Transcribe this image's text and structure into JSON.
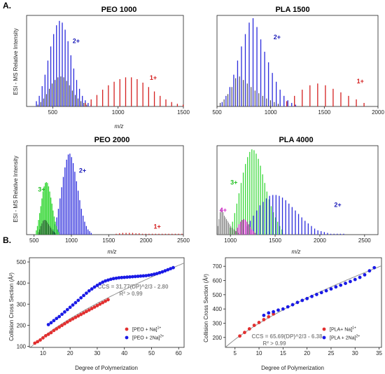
{
  "figure": {
    "section_a": "A.",
    "section_b": "B."
  },
  "chart_data": [
    {
      "id": "peo1000",
      "type": "bar",
      "title": "PEO 1000",
      "xlabel": "m/z",
      "ylabel": "ESI - MS Relative Intensity",
      "xlim": [
        300,
        1500
      ],
      "xticks": [
        500,
        1000,
        1500
      ],
      "annotations": [
        {
          "text": "2+",
          "x": 680,
          "y": 0.72,
          "color": "#1a1ab8"
        },
        {
          "text": "1+",
          "x": 1270,
          "y": 0.3,
          "color": "#d42020"
        }
      ],
      "series": [
        {
          "name": "2+",
          "color": "#2a2adc",
          "start": 375,
          "step": 22,
          "values": [
            0.06,
            0.12,
            0.23,
            0.36,
            0.52,
            0.68,
            0.82,
            0.92,
            0.97,
            0.95,
            0.87,
            0.74,
            0.58,
            0.43,
            0.3,
            0.2,
            0.12,
            0.07,
            0.04,
            0.02
          ]
        },
        {
          "name": "1+",
          "color": "#d42020",
          "start": 750,
          "step": 44,
          "values": [
            0.04,
            0.08,
            0.13,
            0.19,
            0.24,
            0.28,
            0.31,
            0.33,
            0.33,
            0.31,
            0.27,
            0.22,
            0.17,
            0.12,
            0.08,
            0.05,
            0.03,
            0.02
          ]
        },
        {
          "name": "adduct",
          "color": "#1c1c1c",
          "start": 386,
          "step": 22,
          "values": [
            0.02,
            0.05,
            0.09,
            0.14,
            0.2,
            0.26,
            0.3,
            0.33,
            0.34,
            0.33,
            0.29,
            0.24,
            0.18,
            0.13,
            0.09,
            0.06,
            0.04,
            0.02
          ]
        }
      ]
    },
    {
      "id": "pla1500",
      "type": "bar",
      "title": "PLA 1500",
      "xlabel": "m/z",
      "ylabel": "",
      "xlim": [
        500,
        2000
      ],
      "xticks": [
        500,
        1000,
        1500,
        2000
      ],
      "annotations": [
        {
          "text": "2+",
          "x": 1060,
          "y": 0.76,
          "color": "#1a1ab8"
        },
        {
          "text": "1+",
          "x": 1835,
          "y": 0.26,
          "color": "#d42020"
        }
      ],
      "series": [
        {
          "name": "2+",
          "color": "#2a2adc",
          "start": 548,
          "step": 36,
          "values": [
            0.05,
            0.12,
            0.22,
            0.36,
            0.52,
            0.68,
            0.82,
            0.95,
            1.0,
            0.9,
            0.76,
            0.62,
            0.5,
            0.38,
            0.28,
            0.19,
            0.12,
            0.07,
            0.04,
            0.02
          ]
        },
        {
          "name": "1+",
          "color": "#d42020",
          "start": 1150,
          "step": 72,
          "values": [
            0.06,
            0.12,
            0.19,
            0.24,
            0.26,
            0.24,
            0.2,
            0.16,
            0.12,
            0.08,
            0.04
          ]
        },
        {
          "name": "adduct",
          "color": "#1c1c1c",
          "start": 530,
          "step": 36,
          "values": [
            0.04,
            0.08,
            0.14,
            0.22,
            0.32,
            0.34,
            0.3,
            0.26,
            0.22,
            0.18,
            0.15,
            0.12,
            0.09,
            0.07,
            0.05,
            0.03
          ]
        }
      ]
    },
    {
      "id": "peo2000",
      "type": "bar",
      "title": "PEO 2000",
      "xlabel": "m/z",
      "ylabel": "ESI - MS Relative Intensity",
      "xlim": [
        400,
        2500
      ],
      "xticks": [
        500,
        1000,
        1500,
        2000,
        2500
      ],
      "annotations": [
        {
          "text": "3+",
          "x": 600,
          "y": 0.5,
          "color": "#22c022"
        },
        {
          "text": "2+",
          "x": 1150,
          "y": 0.72,
          "color": "#1a1ab8"
        },
        {
          "text": "1+",
          "x": 2150,
          "y": 0.07,
          "color": "#d42020"
        }
      ],
      "series": [
        {
          "name": "3+",
          "color": "#3ad83a",
          "start": 530,
          "step": 15,
          "values": [
            0.05,
            0.1,
            0.17,
            0.25,
            0.33,
            0.42,
            0.5,
            0.56,
            0.6,
            0.61,
            0.6,
            0.56,
            0.5,
            0.43,
            0.36,
            0.28,
            0.21,
            0.15,
            0.1,
            0.06,
            0.03
          ]
        },
        {
          "name": "2+",
          "color": "#2a2adc",
          "start": 760,
          "step": 22,
          "values": [
            0.06,
            0.12,
            0.2,
            0.3,
            0.42,
            0.55,
            0.67,
            0.78,
            0.87,
            0.93,
            0.94,
            0.9,
            0.83,
            0.73,
            0.62,
            0.51,
            0.4,
            0.3,
            0.22,
            0.15,
            0.1,
            0.06,
            0.04,
            0.02
          ]
        },
        {
          "name": "1+",
          "color": "#d42020",
          "start": 1600,
          "step": 44,
          "values": [
            0.01,
            0.015,
            0.02,
            0.02,
            0.02,
            0.02,
            0.015,
            0.015,
            0.01,
            0.01,
            0.01,
            0.01,
            0.01,
            0.01,
            0.01,
            0.01,
            0.01,
            0.01,
            0.01,
            0.01,
            0.01
          ]
        },
        {
          "name": "adduct",
          "color": "#0d4a16",
          "start": 560,
          "step": 15,
          "values": [
            0.03,
            0.06,
            0.1,
            0.13,
            0.16,
            0.17,
            0.17,
            0.16,
            0.14,
            0.12,
            0.1,
            0.08,
            0.06,
            0.04,
            0.03,
            0.02
          ]
        }
      ]
    },
    {
      "id": "pla4000",
      "type": "bar",
      "title": "PLA 4000",
      "xlabel": "m/z",
      "ylabel": "",
      "xlim": [
        850,
        2650
      ],
      "xticks": [
        1000,
        1500,
        2000,
        2500
      ],
      "annotations": [
        {
          "text": "4+",
          "x": 920,
          "y": 0.26,
          "color": "#d020c8"
        },
        {
          "text": "3+",
          "x": 1040,
          "y": 0.58,
          "color": "#22c022"
        },
        {
          "text": "2+",
          "x": 2200,
          "y": 0.32,
          "color": "#1a1ab8"
        }
      ],
      "series": [
        {
          "name": "3+",
          "color": "#3ad83a",
          "start": 1000,
          "step": 24,
          "values": [
            0.08,
            0.15,
            0.25,
            0.36,
            0.48,
            0.6,
            0.72,
            0.82,
            0.9,
            0.96,
            0.99,
            0.98,
            0.94,
            0.88,
            0.8,
            0.7,
            0.6,
            0.5,
            0.41,
            0.33,
            0.26,
            0.2,
            0.15,
            0.1,
            0.06
          ]
        },
        {
          "name": "2+",
          "color": "#2a2adc",
          "start": 1150,
          "step": 36,
          "values": [
            0.06,
            0.1,
            0.16,
            0.22,
            0.28,
            0.34,
            0.38,
            0.42,
            0.45,
            0.46,
            0.46,
            0.45,
            0.43,
            0.4,
            0.36,
            0.32,
            0.28,
            0.24,
            0.2,
            0.16,
            0.13,
            0.1,
            0.07,
            0.05,
            0.04,
            0.03,
            0.02,
            0.01,
            0.01,
            0.01,
            0.01,
            0.01
          ]
        },
        {
          "name": "4+",
          "color": "#d020c8",
          "start": 1060,
          "step": 18,
          "values": [
            0.04,
            0.08,
            0.12,
            0.15,
            0.17,
            0.18,
            0.17,
            0.15,
            0.12,
            0.09,
            0.06,
            0.04,
            0.02
          ]
        },
        {
          "name": "adduct",
          "color": "#808080",
          "start": 860,
          "step": 12,
          "values": [
            0.1,
            0.18,
            0.26,
            0.3,
            0.28,
            0.26,
            0.22,
            0.2,
            0.18,
            0.16,
            0.14,
            0.12,
            0.1,
            0.08,
            0.07,
            0.06,
            0.05,
            0.04,
            0.03,
            0.02
          ]
        }
      ]
    },
    {
      "id": "peo_ccs",
      "type": "scatter",
      "xlabel": "Degree of Polymerization",
      "ylabel": "Collision Cross Section (Å²)",
      "xlim": [
        5,
        62
      ],
      "ylim": [
        95,
        520
      ],
      "xticks": [
        10,
        20,
        30,
        40,
        50,
        60
      ],
      "yticks": [
        100,
        200,
        300,
        400,
        500
      ],
      "equation": "CCS = 31.77(DP)^2/3 - 2.80",
      "r2": "R² > 0.99",
      "fit": {
        "a": 31.77,
        "b": -2.8,
        "color": "#8a8a8a"
      },
      "legend": [
        {
          "label": "[PEO + Na]",
          "sup": "1+",
          "color": "#e23030"
        },
        {
          "label": "[PEO + 2Na]",
          "sup": "2+",
          "color": "#1a1ae6"
        }
      ],
      "series": [
        {
          "name": "[PEO + Na]1+",
          "color": "#e23030",
          "x": [
            7,
            8,
            9,
            10,
            11,
            12,
            13,
            14,
            15,
            16,
            17,
            18,
            19,
            20,
            21,
            22,
            23,
            24,
            25,
            26,
            27,
            28,
            29,
            30,
            31,
            32,
            33,
            34
          ],
          "y": [
            115,
            122,
            130,
            140,
            150,
            157,
            165,
            175,
            183,
            191,
            199,
            207,
            215,
            223,
            230,
            237,
            244,
            251,
            258,
            265,
            272,
            279,
            286,
            293,
            300,
            307,
            314,
            321
          ]
        },
        {
          "name": "[PEO + 2Na]2+",
          "color": "#1a1ae6",
          "x": [
            12,
            13,
            14,
            15,
            16,
            17,
            18,
            19,
            20,
            21,
            22,
            23,
            24,
            25,
            26,
            27,
            28,
            29,
            30,
            31,
            32,
            33,
            34,
            35,
            36,
            37,
            38,
            39,
            40,
            41,
            42,
            43,
            44,
            45,
            46,
            47,
            48,
            49,
            50,
            51,
            52,
            53,
            54,
            55,
            56,
            57,
            58
          ],
          "y": [
            203,
            212,
            222,
            232,
            241,
            252,
            263,
            274,
            285,
            296,
            307,
            318,
            330,
            341,
            352,
            363,
            372,
            381,
            389,
            397,
            404,
            410,
            414,
            418,
            421,
            423,
            425,
            426,
            427,
            428,
            429,
            430,
            431,
            432,
            433,
            434,
            435,
            437,
            439,
            442,
            445,
            449,
            453,
            458,
            463,
            468,
            473
          ]
        }
      ]
    },
    {
      "id": "pla_ccs",
      "type": "scatter",
      "xlabel": "Degree of Polymerization",
      "ylabel": "Collision Cross Section (Å²)",
      "xlim": [
        3,
        35.5
      ],
      "ylim": [
        130,
        760
      ],
      "xticks": [
        5,
        10,
        15,
        20,
        25,
        30,
        35
      ],
      "yticks": [
        200,
        300,
        400,
        500,
        600,
        700
      ],
      "equation": "CCS = 65.69(DP)^2/3 - 6.38",
      "r2": "R² > 0.99",
      "fit": {
        "a": 65.69,
        "b": -6.38,
        "color": "#8a8a8a"
      },
      "legend": [
        {
          "label": "[PLA+ Na]",
          "sup": "1+",
          "color": "#e23030"
        },
        {
          "label": "[PLA + 2Na]",
          "sup": "2+",
          "color": "#1a1ae6"
        }
      ],
      "series": [
        {
          "name": "[PLA+ Na]1+",
          "color": "#e23030",
          "x": [
            6,
            7,
            8,
            9,
            10,
            11,
            12,
            13
          ],
          "y": [
            210,
            235,
            260,
            285,
            305,
            325,
            345,
            365
          ]
        },
        {
          "name": "[PLA + 2Na]2+",
          "color": "#1a1ae6",
          "x": [
            11,
            12,
            13,
            14,
            15,
            16,
            17,
            18,
            19,
            20,
            21,
            22,
            23,
            24,
            25,
            26,
            27,
            28,
            29,
            30,
            31,
            32,
            33,
            34
          ],
          "y": [
            355,
            372,
            380,
            392,
            400,
            415,
            430,
            446,
            460,
            473,
            488,
            502,
            515,
            528,
            541,
            555,
            567,
            580,
            593,
            607,
            622,
            640,
            668,
            690
          ]
        }
      ]
    }
  ]
}
